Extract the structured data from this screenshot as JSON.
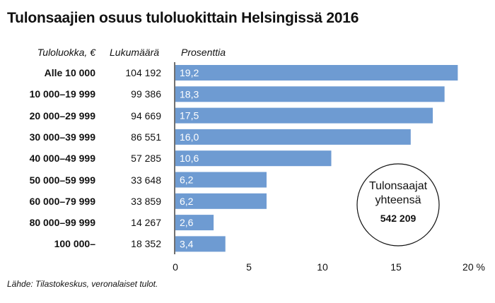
{
  "title": "Tulonsaajien osuus tuloluokittain Helsingissä 2016",
  "headers": {
    "income_class": "Tuloluokka, €",
    "count": "Lukumäärä",
    "percent": "Prosenttia"
  },
  "source": "Lähde: Tilastokeskus, veronalaiset tulot.",
  "total_box": {
    "line1": "Tulonsaajat",
    "line2": "yhteensä",
    "value": "542 209"
  },
  "colors": {
    "bar": "#6e9bd2",
    "bar_label": "#ffffff",
    "axis": "#111111"
  },
  "chart_data": {
    "type": "bar",
    "orientation": "horizontal",
    "categories": [
      "Alle 10 000",
      "10 000–19 999",
      "20 000–29 999",
      "30 000–39 999",
      "40 000–49 999",
      "50 000–59 999",
      "60 000–79 999",
      "80 000–99 999",
      "100 000–"
    ],
    "counts": [
      "104 192",
      "99 386",
      "94 669",
      "86 551",
      "57 285",
      "33 648",
      "33 859",
      "14 267",
      "18 352"
    ],
    "values": [
      19.2,
      18.3,
      17.5,
      16.0,
      10.6,
      6.2,
      6.2,
      2.6,
      3.4
    ],
    "value_labels": [
      "19,2",
      "18,3",
      "17,5",
      "16,0",
      "10,6",
      "6,2",
      "6,2",
      "2,6",
      "3,4"
    ],
    "xlim": [
      0,
      20
    ],
    "xticks": [
      0,
      5,
      10,
      15,
      20
    ],
    "xtick_labels": [
      "0",
      "5",
      "10",
      "15",
      "20 %"
    ],
    "grid": false
  }
}
